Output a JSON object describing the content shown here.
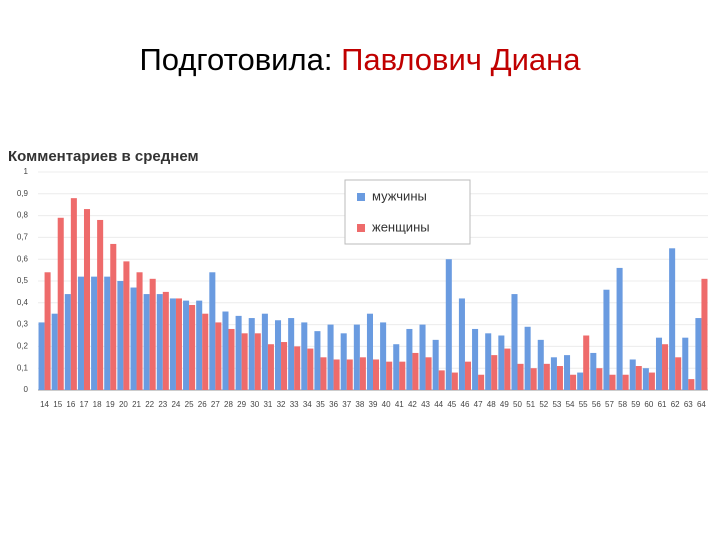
{
  "slide_title": {
    "prefix": "Подготовила:",
    "author": "Павлович Диана"
  },
  "chart_data": {
    "type": "bar",
    "title": "Комментариев в среднем",
    "categories": [
      "14",
      "15",
      "16",
      "17",
      "18",
      "19",
      "20",
      "21",
      "22",
      "23",
      "24",
      "25",
      "26",
      "27",
      "28",
      "29",
      "30",
      "31",
      "32",
      "33",
      "34",
      "35",
      "36",
      "37",
      "38",
      "39",
      "40",
      "41",
      "42",
      "43",
      "44",
      "45",
      "46",
      "47",
      "48",
      "49",
      "50",
      "51",
      "52",
      "53",
      "54",
      "55",
      "56",
      "57",
      "58",
      "59",
      "60",
      "61",
      "62",
      "63",
      "64"
    ],
    "series": [
      {
        "name": "мужчины",
        "color": "#6a9be0",
        "values": [
          0.31,
          0.35,
          0.44,
          0.52,
          0.52,
          0.52,
          0.5,
          0.47,
          0.44,
          0.44,
          0.42,
          0.41,
          0.41,
          0.54,
          0.36,
          0.34,
          0.33,
          0.35,
          0.32,
          0.33,
          0.31,
          0.27,
          0.3,
          0.26,
          0.3,
          0.35,
          0.31,
          0.21,
          0.28,
          0.3,
          0.23,
          0.6,
          0.42,
          0.28,
          0.26,
          0.25,
          0.44,
          0.29,
          0.23,
          0.15,
          0.16,
          0.08,
          0.17,
          0.46,
          0.56,
          0.14,
          0.1,
          0.24,
          0.65,
          0.24,
          0.33
        ]
      },
      {
        "name": "женщины",
        "color": "#ee6b6b",
        "values": [
          0.54,
          0.79,
          0.88,
          0.83,
          0.78,
          0.67,
          0.59,
          0.54,
          0.51,
          0.45,
          0.42,
          0.39,
          0.35,
          0.31,
          0.28,
          0.26,
          0.26,
          0.21,
          0.22,
          0.2,
          0.19,
          0.15,
          0.14,
          0.14,
          0.15,
          0.14,
          0.13,
          0.13,
          0.17,
          0.15,
          0.09,
          0.08,
          0.13,
          0.07,
          0.16,
          0.19,
          0.12,
          0.1,
          0.12,
          0.11,
          0.07,
          0.25,
          0.1,
          0.07,
          0.07,
          0.11,
          0.08,
          0.21,
          0.15,
          0.05,
          0.51
        ]
      }
    ],
    "ylim": [
      0,
      1
    ],
    "yticks": [
      0,
      {
        "value": 0.1,
        "label": "0,1"
      },
      {
        "value": 0.2,
        "label": "0,2"
      },
      {
        "value": 0.3,
        "label": "0,3"
      },
      {
        "value": 0.4,
        "label": "0,4"
      },
      {
        "value": 0.5,
        "label": "0,5"
      },
      {
        "value": 0.6,
        "label": "0,6"
      },
      {
        "value": 0.7,
        "label": "0,7"
      },
      {
        "value": 0.8,
        "label": "0,8"
      },
      {
        "value": 0.9,
        "label": "0,9"
      },
      1
    ],
    "grid": true,
    "legend": "top-center"
  }
}
